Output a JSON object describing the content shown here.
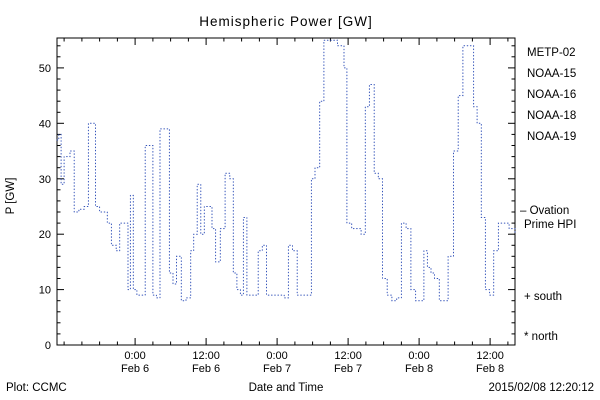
{
  "title": "Hemispheric Power [GW]",
  "footer": {
    "plot_credit": "Plot: CCMC",
    "timestamp": "2015/02/08 12:20:12",
    "timestamp_color": "#2233bb"
  },
  "legend": {
    "satellites": [
      {
        "label": "METP-02",
        "color": "#000000"
      },
      {
        "label": "NOAA-15",
        "color": "#2233cc"
      },
      {
        "label": "NOAA-16",
        "color": "#44ccee"
      },
      {
        "label": "NOAA-18",
        "color": "#77dd88"
      },
      {
        "label": "NOAA-19",
        "color": "#ffaa44"
      }
    ],
    "series_note_line1": "– Ovation",
    "series_note_line2": "Prime HPI",
    "series_note_color": "#2233cc",
    "south_marker": "+ south",
    "north_marker": "* north"
  },
  "chart_data": {
    "type": "line",
    "subtype": "step-dotted",
    "title": "Hemispheric Power [GW]",
    "xlabel": "Date and Time",
    "ylabel": "P [GW]",
    "ylim": [
      0,
      55.4
    ],
    "yticks": [
      0,
      10,
      20,
      30,
      40,
      50
    ],
    "y_minor_step": 2,
    "x_unit": "hours since 2015-02-06 00:00",
    "xlim": [
      -13.2,
      64.2
    ],
    "x_minor_step": 3,
    "xticks": [
      {
        "hour": 0,
        "time": "0:00",
        "date": "Feb 6"
      },
      {
        "hour": 12,
        "time": "12:00",
        "date": "Feb 6"
      },
      {
        "hour": 24,
        "time": "0:00",
        "date": "Feb 7"
      },
      {
        "hour": 36,
        "time": "12:00",
        "date": "Feb 7"
      },
      {
        "hour": 48,
        "time": "0:00",
        "date": "Feb 8"
      },
      {
        "hour": 60,
        "time": "12:00",
        "date": "Feb 8"
      }
    ],
    "grid": false,
    "legend_position": "right-outside",
    "series": [
      {
        "name": "Ovation Prime HPI",
        "color": "#3050b8",
        "step": true,
        "x": [
          -13.2,
          -12.9,
          -12.5,
          -12.0,
          -11.0,
          -10.3,
          -9.5,
          -8.6,
          -7.9,
          -7.2,
          -6.7,
          -6.0,
          -5.2,
          -4.7,
          -4.0,
          -3.2,
          -2.6,
          -1.8,
          -1.2,
          -0.8,
          -0.3,
          0.3,
          1.0,
          1.7,
          2.4,
          3.0,
          3.6,
          4.2,
          5.0,
          5.8,
          6.4,
          7.0,
          7.8,
          8.6,
          9.4,
          9.9,
          10.5,
          11.1,
          11.7,
          12.4,
          13.0,
          13.6,
          14.4,
          15.2,
          16.0,
          16.6,
          17.2,
          17.8,
          18.3,
          18.9,
          19.8,
          20.8,
          21.5,
          22.2,
          23.2,
          24.2,
          25.2,
          25.9,
          26.6,
          27.4,
          28.4,
          29.3,
          29.8,
          30.4,
          31.2,
          31.9,
          33.0,
          34.2,
          35.3,
          35.8,
          36.6,
          37.4,
          38.2,
          38.9,
          39.6,
          40.4,
          41.1,
          41.8,
          42.6,
          43.4,
          44.2,
          45.0,
          45.8,
          46.6,
          47.4,
          48.2,
          48.8,
          49.4,
          50.0,
          50.6,
          51.4,
          52.2,
          52.9,
          53.8,
          54.6,
          55.4,
          56.4,
          57.2,
          57.8,
          58.5,
          59.2,
          59.9,
          60.6,
          61.4,
          62.4,
          63.2,
          64.2
        ],
        "y": [
          37,
          38,
          29,
          34,
          35,
          24,
          24.5,
          25,
          40,
          40,
          25,
          24,
          24,
          22,
          18,
          17,
          22,
          22,
          10,
          27,
          10,
          9,
          9,
          36,
          36,
          9,
          8.5,
          39,
          39,
          13,
          11,
          16,
          8,
          8.5,
          17,
          20,
          29,
          20,
          25,
          25,
          21,
          15,
          21,
          31,
          30,
          13,
          10,
          9,
          23,
          9,
          9,
          17,
          18,
          9,
          9,
          9,
          8.5,
          18,
          17,
          9,
          9,
          9,
          30,
          32,
          44,
          55,
          55,
          54,
          50,
          22,
          21,
          21,
          20,
          43,
          47,
          31,
          30,
          12,
          9,
          8,
          8.5,
          22,
          21,
          10,
          8,
          8,
          17,
          14,
          13,
          12,
          8,
          8,
          16,
          35,
          45,
          54,
          54,
          43,
          40,
          23,
          10,
          9,
          17,
          22,
          22,
          21,
          20
        ]
      }
    ]
  }
}
